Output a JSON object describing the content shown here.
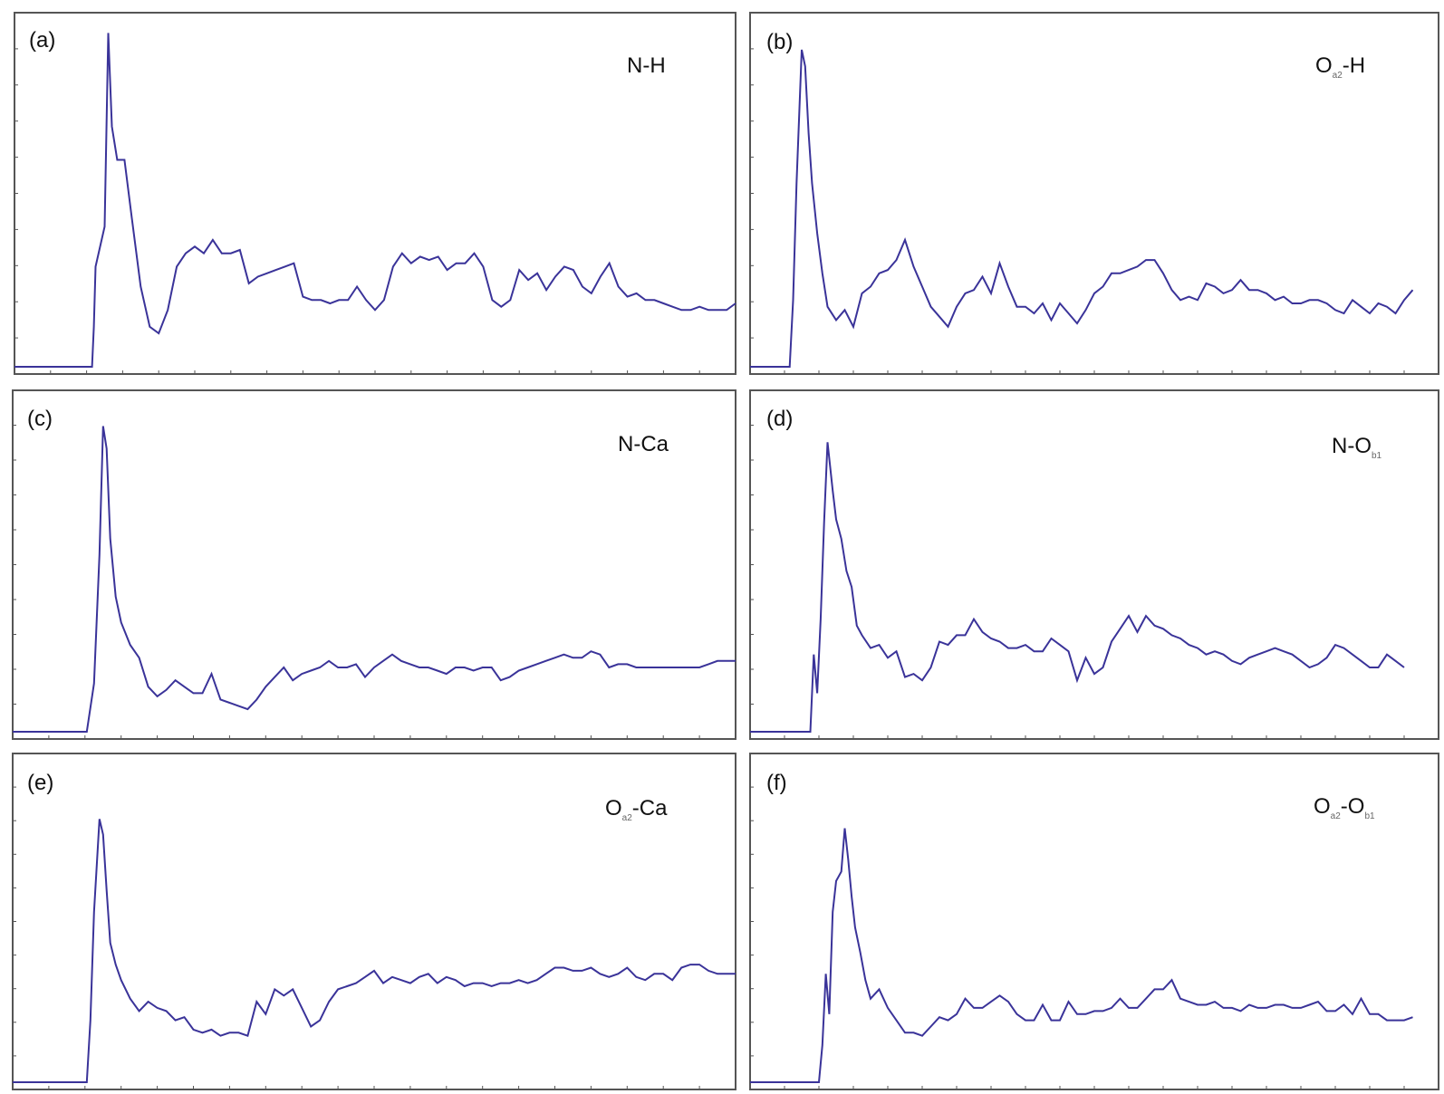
{
  "chart_data": [
    {
      "type": "line",
      "panel": "(a)",
      "label": {
        "main": "N-H",
        "sub": ""
      },
      "color": "#3a3399",
      "x": [
        0,
        0.86,
        0.88,
        0.9,
        1.0,
        1.04,
        1.08,
        1.14,
        1.22,
        1.3,
        1.4,
        1.5,
        1.6,
        1.7,
        1.8,
        1.9,
        2.0,
        2.1,
        2.2,
        2.3,
        2.4,
        2.5,
        2.6,
        2.7,
        2.8,
        2.9,
        3.0,
        3.1,
        3.2,
        3.3,
        3.4,
        3.5,
        3.6,
        3.7,
        3.8,
        3.9,
        4.0,
        4.1,
        4.2,
        4.3,
        4.4,
        4.5,
        4.6,
        4.7,
        4.8,
        4.9,
        5.0,
        5.1,
        5.2,
        5.3,
        5.4,
        5.5,
        5.6,
        5.7,
        5.8,
        5.9,
        6.0,
        6.1,
        6.2,
        6.3,
        6.4,
        6.5,
        6.6,
        6.7,
        6.8,
        6.9,
        7.0,
        7.1,
        7.2,
        7.3,
        7.4,
        7.5,
        7.6,
        7.7,
        7.8,
        7.9,
        8.0
      ],
      "y": [
        0,
        0,
        0.12,
        0.3,
        0.42,
        1.0,
        0.72,
        0.62,
        0.62,
        0.45,
        0.24,
        0.12,
        0.1,
        0.17,
        0.3,
        0.34,
        0.36,
        0.34,
        0.38,
        0.34,
        0.34,
        0.35,
        0.25,
        0.27,
        0.28,
        0.29,
        0.3,
        0.31,
        0.21,
        0.2,
        0.2,
        0.19,
        0.2,
        0.2,
        0.24,
        0.2,
        0.17,
        0.2,
        0.3,
        0.34,
        0.31,
        0.33,
        0.32,
        0.33,
        0.29,
        0.31,
        0.31,
        0.34,
        0.3,
        0.2,
        0.18,
        0.2,
        0.29,
        0.26,
        0.28,
        0.23,
        0.27,
        0.3,
        0.29,
        0.24,
        0.22,
        0.27,
        0.31,
        0.24,
        0.21,
        0.22,
        0.2,
        0.2,
        0.19,
        0.18,
        0.17,
        0.17,
        0.18,
        0.17,
        0.17,
        0.17,
        0.19
      ]
    },
    {
      "type": "line",
      "panel": "(b)",
      "label": {
        "main": "O",
        "sub": "a2",
        "tail": "-H",
        "tail_sub": ""
      },
      "color": "#3a3399",
      "x": [
        0,
        0.46,
        0.5,
        0.54,
        0.6,
        0.64,
        0.68,
        0.72,
        0.78,
        0.84,
        0.9,
        1.0,
        1.1,
        1.2,
        1.3,
        1.4,
        1.5,
        1.6,
        1.7,
        1.8,
        1.9,
        2.0,
        2.1,
        2.2,
        2.3,
        2.4,
        2.5,
        2.6,
        2.7,
        2.8,
        2.9,
        3.0,
        3.1,
        3.2,
        3.3,
        3.4,
        3.5,
        3.6,
        3.7,
        3.8,
        3.9,
        4.0,
        4.1,
        4.2,
        4.3,
        4.4,
        4.5,
        4.6,
        4.7,
        4.8,
        4.9,
        5.0,
        5.1,
        5.2,
        5.3,
        5.4,
        5.5,
        5.6,
        5.7,
        5.8,
        5.9,
        6.0,
        6.1,
        6.2,
        6.3,
        6.4,
        6.5,
        6.6,
        6.7,
        6.8,
        6.9,
        7.0,
        7.1,
        7.2,
        7.3,
        7.4,
        7.5,
        7.6,
        7.7
      ],
      "y": [
        0,
        0,
        0.2,
        0.55,
        0.95,
        0.9,
        0.7,
        0.55,
        0.4,
        0.28,
        0.18,
        0.14,
        0.17,
        0.12,
        0.22,
        0.24,
        0.28,
        0.29,
        0.32,
        0.38,
        0.3,
        0.24,
        0.18,
        0.15,
        0.12,
        0.18,
        0.22,
        0.23,
        0.27,
        0.22,
        0.31,
        0.24,
        0.18,
        0.18,
        0.16,
        0.19,
        0.14,
        0.19,
        0.16,
        0.13,
        0.17,
        0.22,
        0.24,
        0.28,
        0.28,
        0.29,
        0.3,
        0.32,
        0.32,
        0.28,
        0.23,
        0.2,
        0.21,
        0.2,
        0.25,
        0.24,
        0.22,
        0.23,
        0.26,
        0.23,
        0.23,
        0.22,
        0.2,
        0.21,
        0.19,
        0.19,
        0.2,
        0.2,
        0.19,
        0.17,
        0.16,
        0.2,
        0.18,
        0.16,
        0.19,
        0.18,
        0.16,
        0.2,
        0.23
      ]
    },
    {
      "type": "line",
      "panel": "(c)",
      "label": {
        "main": "N-Ca",
        "sub": ""
      },
      "color": "#3a3399",
      "x": [
        0,
        0.82,
        0.9,
        0.96,
        1.0,
        1.04,
        1.08,
        1.14,
        1.2,
        1.3,
        1.4,
        1.5,
        1.6,
        1.7,
        1.8,
        1.9,
        2.0,
        2.1,
        2.2,
        2.3,
        2.4,
        2.5,
        2.6,
        2.7,
        2.8,
        2.9,
        3.0,
        3.1,
        3.2,
        3.3,
        3.4,
        3.5,
        3.6,
        3.7,
        3.8,
        3.9,
        4.0,
        4.1,
        4.2,
        4.3,
        4.4,
        4.5,
        4.6,
        4.7,
        4.8,
        4.9,
        5.0,
        5.1,
        5.2,
        5.3,
        5.4,
        5.5,
        5.6,
        5.7,
        5.8,
        5.9,
        6.0,
        6.1,
        6.2,
        6.3,
        6.4,
        6.5,
        6.6,
        6.7,
        6.8,
        6.9,
        7.0,
        7.1,
        7.2,
        7.3,
        7.4,
        7.5,
        7.6,
        7.7,
        7.8,
        7.9,
        8.0
      ],
      "y": [
        0,
        0,
        0.15,
        0.55,
        0.95,
        0.88,
        0.6,
        0.42,
        0.34,
        0.27,
        0.23,
        0.14,
        0.11,
        0.13,
        0.16,
        0.14,
        0.12,
        0.12,
        0.18,
        0.1,
        0.09,
        0.08,
        0.07,
        0.1,
        0.14,
        0.17,
        0.2,
        0.16,
        0.18,
        0.19,
        0.2,
        0.22,
        0.2,
        0.2,
        0.21,
        0.17,
        0.2,
        0.22,
        0.24,
        0.22,
        0.21,
        0.2,
        0.2,
        0.19,
        0.18,
        0.2,
        0.2,
        0.19,
        0.2,
        0.2,
        0.16,
        0.17,
        0.19,
        0.2,
        0.21,
        0.22,
        0.23,
        0.24,
        0.23,
        0.23,
        0.25,
        0.24,
        0.2,
        0.21,
        0.21,
        0.2,
        0.2,
        0.2,
        0.2,
        0.2,
        0.2,
        0.2,
        0.2,
        0.21,
        0.22,
        0.22,
        0.22
      ]
    },
    {
      "type": "line",
      "panel": "(d)",
      "label": {
        "main": "N-O",
        "sub": "b1"
      },
      "color": "#3a3399",
      "x": [
        0,
        0.7,
        0.74,
        0.78,
        0.82,
        0.86,
        0.9,
        0.96,
        1.0,
        1.06,
        1.12,
        1.18,
        1.24,
        1.3,
        1.4,
        1.5,
        1.6,
        1.7,
        1.8,
        1.9,
        2.0,
        2.1,
        2.2,
        2.3,
        2.4,
        2.5,
        2.6,
        2.7,
        2.8,
        2.9,
        3.0,
        3.1,
        3.2,
        3.3,
        3.4,
        3.5,
        3.6,
        3.7,
        3.8,
        3.9,
        4.0,
        4.1,
        4.2,
        4.3,
        4.4,
        4.5,
        4.6,
        4.7,
        4.8,
        4.9,
        5.0,
        5.1,
        5.2,
        5.3,
        5.4,
        5.5,
        5.6,
        5.7,
        5.8,
        5.9,
        6.0,
        6.1,
        6.2,
        6.3,
        6.4,
        6.5,
        6.6,
        6.7,
        6.8,
        6.9,
        7.0,
        7.1,
        7.2,
        7.3,
        7.4,
        7.5,
        7.6
      ],
      "y": [
        0,
        0,
        0.24,
        0.12,
        0.35,
        0.65,
        0.9,
        0.75,
        0.66,
        0.6,
        0.5,
        0.45,
        0.33,
        0.3,
        0.26,
        0.27,
        0.23,
        0.25,
        0.17,
        0.18,
        0.16,
        0.2,
        0.28,
        0.27,
        0.3,
        0.3,
        0.35,
        0.31,
        0.29,
        0.28,
        0.26,
        0.26,
        0.27,
        0.25,
        0.25,
        0.29,
        0.27,
        0.25,
        0.16,
        0.23,
        0.18,
        0.2,
        0.28,
        0.32,
        0.36,
        0.31,
        0.36,
        0.33,
        0.32,
        0.3,
        0.29,
        0.27,
        0.26,
        0.24,
        0.25,
        0.24,
        0.22,
        0.21,
        0.23,
        0.24,
        0.25,
        0.26,
        0.25,
        0.24,
        0.22,
        0.2,
        0.21,
        0.23,
        0.27,
        0.26,
        0.24,
        0.22,
        0.2,
        0.2,
        0.24,
        0.22,
        0.2
      ]
    },
    {
      "type": "line",
      "panel": "(e)",
      "label": {
        "main": "O",
        "sub": "a2",
        "tail": "-Ca",
        "tail_sub": ""
      },
      "color": "#3a3399",
      "x": [
        0,
        0.82,
        0.86,
        0.9,
        0.96,
        1.0,
        1.04,
        1.08,
        1.14,
        1.2,
        1.3,
        1.4,
        1.5,
        1.6,
        1.7,
        1.8,
        1.9,
        2.0,
        2.1,
        2.2,
        2.3,
        2.4,
        2.5,
        2.6,
        2.7,
        2.8,
        2.9,
        3.0,
        3.1,
        3.2,
        3.3,
        3.4,
        3.5,
        3.6,
        3.7,
        3.8,
        3.9,
        4.0,
        4.1,
        4.2,
        4.3,
        4.4,
        4.5,
        4.6,
        4.7,
        4.8,
        4.9,
        5.0,
        5.1,
        5.2,
        5.3,
        5.4,
        5.5,
        5.6,
        5.7,
        5.8,
        5.9,
        6.0,
        6.1,
        6.2,
        6.3,
        6.4,
        6.5,
        6.6,
        6.7,
        6.8,
        6.9,
        7.0,
        7.1,
        7.2,
        7.3,
        7.4,
        7.5,
        7.6,
        7.7,
        7.8,
        7.9,
        8.0
      ],
      "y": [
        0,
        0,
        0.2,
        0.55,
        0.85,
        0.8,
        0.62,
        0.45,
        0.38,
        0.33,
        0.27,
        0.23,
        0.26,
        0.24,
        0.23,
        0.2,
        0.21,
        0.17,
        0.16,
        0.17,
        0.15,
        0.16,
        0.16,
        0.15,
        0.26,
        0.22,
        0.3,
        0.28,
        0.3,
        0.24,
        0.18,
        0.2,
        0.26,
        0.3,
        0.31,
        0.32,
        0.34,
        0.36,
        0.32,
        0.34,
        0.33,
        0.32,
        0.34,
        0.35,
        0.32,
        0.34,
        0.33,
        0.31,
        0.32,
        0.32,
        0.31,
        0.32,
        0.32,
        0.33,
        0.32,
        0.33,
        0.35,
        0.37,
        0.37,
        0.36,
        0.36,
        0.37,
        0.35,
        0.34,
        0.35,
        0.37,
        0.34,
        0.33,
        0.35,
        0.35,
        0.33,
        0.37,
        0.38,
        0.38,
        0.36,
        0.35,
        0.35,
        0.35
      ]
    },
    {
      "type": "line",
      "panel": "(f)",
      "label": {
        "main": "O",
        "sub": "a2",
        "tail": "-O",
        "tail_sub": "b1"
      },
      "color": "#3a3399",
      "x": [
        0,
        0.8,
        0.84,
        0.88,
        0.92,
        0.96,
        1.0,
        1.06,
        1.1,
        1.14,
        1.18,
        1.22,
        1.28,
        1.34,
        1.4,
        1.5,
        1.6,
        1.7,
        1.8,
        1.9,
        2.0,
        2.1,
        2.2,
        2.3,
        2.4,
        2.5,
        2.6,
        2.7,
        2.8,
        2.9,
        3.0,
        3.1,
        3.2,
        3.3,
        3.4,
        3.5,
        3.6,
        3.7,
        3.8,
        3.9,
        4.0,
        4.1,
        4.2,
        4.3,
        4.4,
        4.5,
        4.6,
        4.7,
        4.8,
        4.9,
        5.0,
        5.1,
        5.2,
        5.3,
        5.4,
        5.5,
        5.6,
        5.7,
        5.8,
        5.9,
        6.0,
        6.1,
        6.2,
        6.3,
        6.4,
        6.5,
        6.6,
        6.7,
        6.8,
        6.9,
        7.0,
        7.1,
        7.2,
        7.3,
        7.4,
        7.5,
        7.6,
        7.7
      ],
      "y": [
        0,
        0,
        0.12,
        0.35,
        0.22,
        0.55,
        0.65,
        0.68,
        0.82,
        0.72,
        0.6,
        0.5,
        0.42,
        0.33,
        0.27,
        0.3,
        0.24,
        0.2,
        0.16,
        0.16,
        0.15,
        0.18,
        0.21,
        0.2,
        0.22,
        0.27,
        0.24,
        0.24,
        0.26,
        0.28,
        0.26,
        0.22,
        0.2,
        0.2,
        0.25,
        0.2,
        0.2,
        0.26,
        0.22,
        0.22,
        0.23,
        0.23,
        0.24,
        0.27,
        0.24,
        0.24,
        0.27,
        0.3,
        0.3,
        0.33,
        0.27,
        0.26,
        0.25,
        0.25,
        0.26,
        0.24,
        0.24,
        0.23,
        0.25,
        0.24,
        0.24,
        0.25,
        0.25,
        0.24,
        0.24,
        0.25,
        0.26,
        0.23,
        0.23,
        0.25,
        0.22,
        0.27,
        0.22,
        0.22,
        0.2,
        0.2,
        0.2,
        0.21
      ]
    }
  ]
}
